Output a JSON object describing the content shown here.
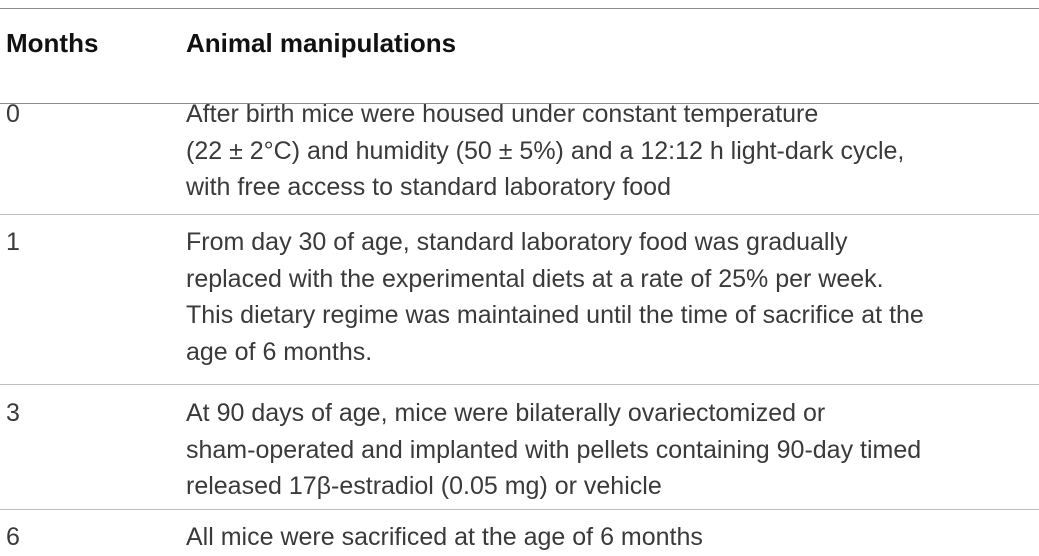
{
  "table": {
    "headers": {
      "months": "Months",
      "manipulations": "Animal manipulations"
    },
    "rows": [
      {
        "month": "0",
        "lines": [
          "After birth mice were housed under constant temperature",
          "(22 ± 2°C) and humidity (50 ± 5%) and a 12:12 h light-dark cycle,",
          "with free access to standard laboratory food"
        ]
      },
      {
        "month": "1",
        "lines": [
          "From day 30 of age, standard laboratory food was gradually",
          "replaced with the experimental diets at a rate of 25% per week.",
          "This dietary regime was maintained until the time of sacrifice at the",
          "age of 6 months."
        ]
      },
      {
        "month": "3",
        "lines": [
          "At 90 days of age, mice were bilaterally ovariectomized or",
          "sham-operated and implanted with pellets containing 90-day timed",
          "released 17β-estradiol (0.05 mg) or vehicle"
        ]
      },
      {
        "month": "6",
        "lines": [
          "All mice were sacrificed at the age of 6 months"
        ]
      }
    ]
  }
}
